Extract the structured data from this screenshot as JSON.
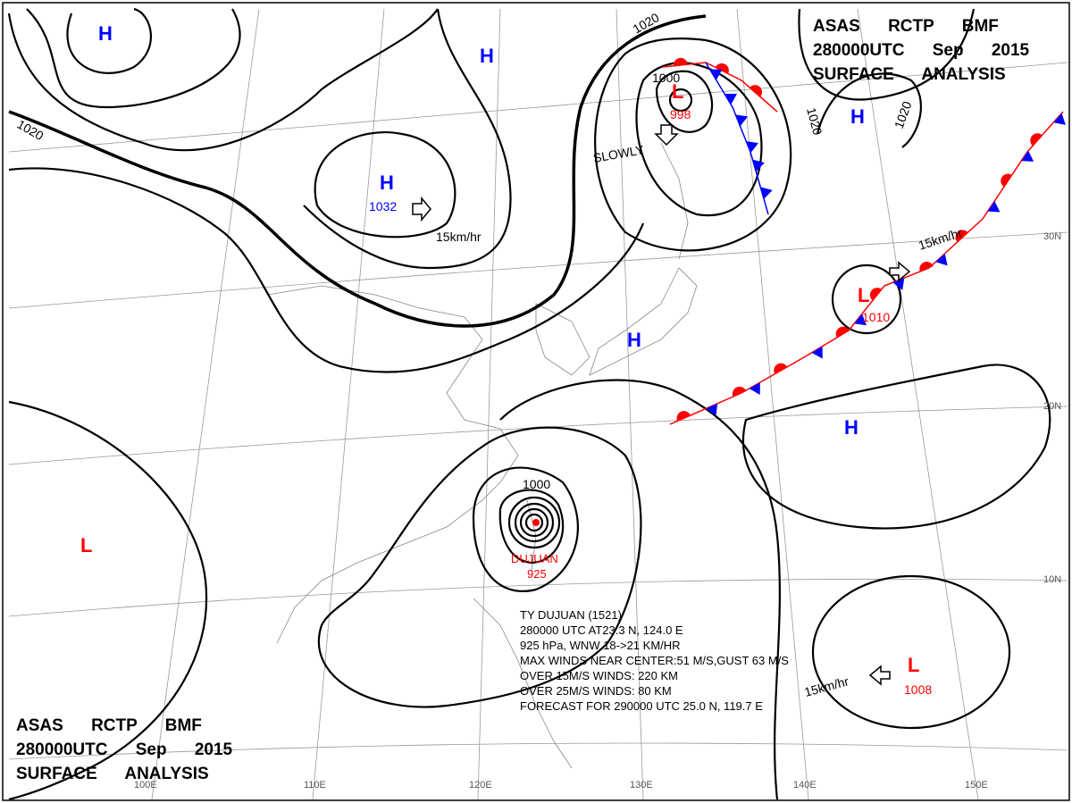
{
  "header": {
    "line1": "ASAS RCTP BMF",
    "line2": "280000UTC Sep 2015",
    "line3": "SURFACE ANALYSIS"
  },
  "centers": [
    {
      "label": "H"
    },
    {
      "label": "H"
    },
    {
      "label": "H",
      "pressure": 1032
    },
    {
      "label": "L",
      "pressure": 998
    },
    {
      "label": "H"
    },
    {
      "label": "H"
    },
    {
      "label": "L",
      "pressure": 1010
    },
    {
      "label": "H"
    },
    {
      "label": "L"
    },
    {
      "label": "L",
      "pressure": 1008
    }
  ],
  "isobar_labels": [
    1020,
    1020,
    1020,
    1020,
    1000,
    1000
  ],
  "movements": [
    "15km/hr",
    "15km/hr",
    "15km/hr",
    "SLOWLY"
  ],
  "typhoon": {
    "name": "DUJUAN",
    "pressure": 925,
    "bulletin": [
      "TY DUJUAN (1521)",
      "280000 UTC AT23.3 N, 124.0 E",
      "925 hPa, WNW 18->21 KM/HR",
      "MAX WINDS NEAR CENTER:51 M/S,GUST 63 M/S",
      "OVER 15M/S WINDS: 220 KM",
      "OVER 25M/S WINDS: 80 KM",
      "FORECAST FOR 290000 UTC 25.0 N, 119.7 E"
    ]
  },
  "grid_labels": {
    "lat": [
      "30N",
      "20N",
      "10N"
    ],
    "lon": [
      "100E",
      "110E",
      "120E",
      "130E",
      "140E",
      "150E"
    ]
  }
}
